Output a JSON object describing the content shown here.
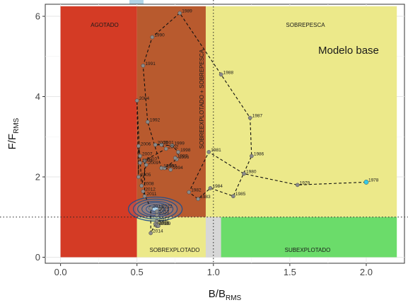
{
  "chart_data": {
    "type": "scatter",
    "title": "",
    "annotation": "Modelo base",
    "xlabel": {
      "main": "B/B",
      "sub": "RMS"
    },
    "ylabel": {
      "main": "F/F",
      "sub": "RMS"
    },
    "xlim": [
      -0.1,
      2.25
    ],
    "ylim": [
      -0.15,
      6.3
    ],
    "xticks": [
      0.0,
      0.5,
      1.0,
      1.5,
      2.0
    ],
    "xtick_labels": [
      "0.0",
      "0.5",
      "1.0",
      "1.5",
      "2.0"
    ],
    "yticks": [
      0,
      2,
      4,
      6
    ],
    "ytick_labels": [
      "0",
      "2",
      "4",
      "6"
    ],
    "grid": true,
    "reference_lines": {
      "x": 1.0,
      "y": 1.0
    },
    "zones": [
      {
        "label": "AGOTADO",
        "x": [
          0,
          0.5
        ],
        "y": [
          0,
          6.25
        ],
        "color": "#d43b25"
      },
      {
        "label": "SOBREEXPLOTADO + SOBREPESCA",
        "x": [
          0.5,
          0.95
        ],
        "y": [
          1,
          6.25
        ],
        "color": "#b85a2e"
      },
      {
        "label": "SOBREPESCA",
        "x": [
          0.95,
          2.2
        ],
        "y": [
          1,
          6.25
        ],
        "color": "#ece98a"
      },
      {
        "label": "SOBREXPLOTADO",
        "x": [
          0.5,
          0.95
        ],
        "y": [
          0,
          1
        ],
        "color": "#ece98a"
      },
      {
        "label": "",
        "x": [
          0.95,
          1.05
        ],
        "y": [
          0,
          1
        ],
        "color": "#d7d7d7"
      },
      {
        "label": "SUBEXPLOTADO",
        "x": [
          1.05,
          2.2
        ],
        "y": [
          0,
          1
        ],
        "color": "#6bdc6a"
      }
    ],
    "series": [
      {
        "points": [
          {
            "year": "1978",
            "x": 2.0,
            "y": 1.87
          },
          {
            "year": "1979",
            "x": 1.55,
            "y": 1.8
          },
          {
            "year": "1980",
            "x": 1.2,
            "y": 2.08
          },
          {
            "year": "1981",
            "x": 0.97,
            "y": 2.62
          },
          {
            "year": "1982",
            "x": 0.84,
            "y": 1.62
          },
          {
            "year": "1983",
            "x": 0.9,
            "y": 1.45
          },
          {
            "year": "1984",
            "x": 0.98,
            "y": 1.72
          },
          {
            "year": "1985",
            "x": 1.13,
            "y": 1.52
          },
          {
            "year": "1986",
            "x": 1.25,
            "y": 2.52
          },
          {
            "year": "1987",
            "x": 1.24,
            "y": 3.47
          },
          {
            "year": "1988",
            "x": 1.05,
            "y": 4.55
          },
          {
            "year": "1989",
            "x": 0.78,
            "y": 6.08
          },
          {
            "year": "1990",
            "x": 0.6,
            "y": 5.48
          },
          {
            "year": "1991",
            "x": 0.54,
            "y": 4.77
          },
          {
            "year": "1992",
            "x": 0.57,
            "y": 3.37
          },
          {
            "year": "1993",
            "x": 0.66,
            "y": 2.22
          },
          {
            "year": "1994",
            "x": 0.72,
            "y": 2.18
          },
          {
            "year": "1995",
            "x": 0.68,
            "y": 2.22
          },
          {
            "year": "1996",
            "x": 0.76,
            "y": 2.44
          },
          {
            "year": "1997",
            "x": 0.75,
            "y": 2.47
          },
          {
            "year": "1998",
            "x": 0.77,
            "y": 2.62
          },
          {
            "year": "1999",
            "x": 0.73,
            "y": 2.78
          },
          {
            "year": "2000",
            "x": 0.62,
            "y": 2.8
          },
          {
            "year": "2001",
            "x": 0.66,
            "y": 2.8
          },
          {
            "year": "2002",
            "x": 0.69,
            "y": 2.7
          },
          {
            "year": "2003",
            "x": 0.52,
            "y": 2.35
          },
          {
            "year": "2004",
            "x": 0.5,
            "y": 3.9
          },
          {
            "year": "2005",
            "x": 0.51,
            "y": 2.0
          },
          {
            "year": "2006",
            "x": 0.51,
            "y": 2.77
          },
          {
            "year": "2007",
            "x": 0.52,
            "y": 2.52
          },
          {
            "year": "2008",
            "x": 0.53,
            "y": 1.78
          },
          {
            "year": "2009",
            "x": 0.56,
            "y": 2.3
          },
          {
            "year": "2010",
            "x": 0.55,
            "y": 2.4
          },
          {
            "year": "2011",
            "x": 0.55,
            "y": 1.52
          },
          {
            "year": "2012",
            "x": 0.54,
            "y": 1.64
          },
          {
            "year": "2013",
            "x": 0.59,
            "y": 1.22
          },
          {
            "year": "2014",
            "x": 0.59,
            "y": 0.6
          },
          {
            "year": "2015",
            "x": 0.62,
            "y": 0.83
          },
          {
            "year": "2016",
            "x": 0.63,
            "y": 0.78
          },
          {
            "year": "2017",
            "x": 0.63,
            "y": 0.9
          },
          {
            "year": "2018",
            "x": 0.63,
            "y": 0.8
          },
          {
            "year": "2019",
            "x": 0.64,
            "y": 0.78
          },
          {
            "year": "2020",
            "x": 0.63,
            "y": 1.05
          },
          {
            "year": "2021",
            "x": 0.63,
            "y": 1.14
          },
          {
            "year": "2022",
            "x": 0.65,
            "y": 1.22
          }
        ]
      }
    ],
    "first_point_color": "#35c9e6",
    "point_color": "#8a8a8a",
    "density_contour": {
      "center": [
        0.62,
        1.2
      ],
      "color": "#1f4e8c"
    }
  }
}
